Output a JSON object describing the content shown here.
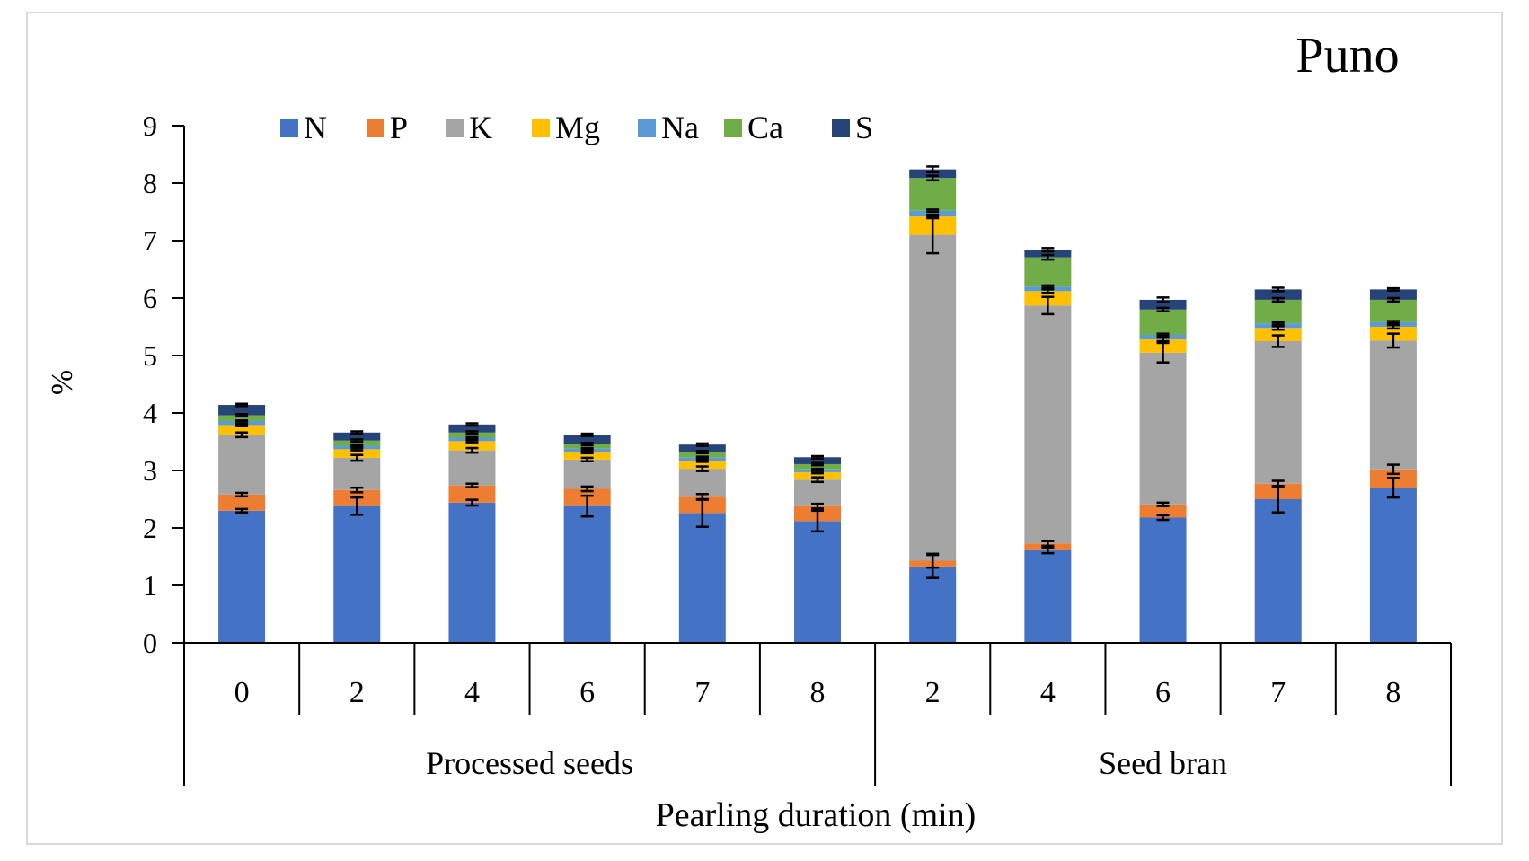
{
  "chart_data": {
    "type": "stacked-bar",
    "title": "Puno",
    "ylabel": "%",
    "xlabel": "Pearling duration (min)",
    "ylim": [
      0,
      9
    ],
    "yticks": [
      "0",
      "1",
      "2",
      "3",
      "4",
      "5",
      "6",
      "7",
      "8",
      "9"
    ],
    "grid": false,
    "legend_position": "top-left",
    "groups": [
      {
        "label": "Processed seeds",
        "categories": [
          "0",
          "2",
          "4",
          "6",
          "7",
          "8"
        ]
      },
      {
        "label": "Seed bran",
        "categories": [
          "2",
          "4",
          "6",
          "7",
          "8"
        ]
      }
    ],
    "series": [
      {
        "name": "N",
        "color": "#4472C4",
        "values": [
          2.3,
          2.38,
          2.44,
          2.38,
          2.26,
          2.12,
          1.33,
          1.61,
          2.18,
          2.5,
          2.7
        ],
        "errors": [
          0.03,
          0.15,
          0.05,
          0.18,
          0.24,
          0.18,
          0.2,
          0.05,
          0.04,
          0.23,
          0.17
        ]
      },
      {
        "name": "P",
        "color": "#ED7D31",
        "values": [
          0.28,
          0.28,
          0.3,
          0.3,
          0.28,
          0.26,
          0.1,
          0.12,
          0.23,
          0.27,
          0.32
        ],
        "errors": [
          0.03,
          0.04,
          0.03,
          0.04,
          0.05,
          0.04,
          0.12,
          0.04,
          0.03,
          0.05,
          0.08
        ]
      },
      {
        "name": "K",
        "color": "#A5A5A5",
        "values": [
          1.04,
          0.56,
          0.61,
          0.51,
          0.49,
          0.46,
          5.67,
          4.14,
          2.64,
          2.48,
          2.24
        ],
        "errors": [
          0.04,
          0.05,
          0.04,
          0.03,
          0.04,
          0.04,
          0.32,
          0.15,
          0.17,
          0.1,
          0.12
        ]
      },
      {
        "name": "Mg",
        "color": "#FFC000",
        "values": [
          0.17,
          0.15,
          0.16,
          0.13,
          0.14,
          0.13,
          0.32,
          0.25,
          0.23,
          0.23,
          0.24
        ],
        "errors": [
          0.02,
          0.02,
          0.02,
          0.02,
          0.02,
          0.02,
          0.03,
          0.03,
          0.03,
          0.03,
          0.03
        ]
      },
      {
        "name": "Na",
        "color": "#5B9BD5",
        "values": [
          0.07,
          0.06,
          0.06,
          0.06,
          0.06,
          0.05,
          0.1,
          0.08,
          0.08,
          0.08,
          0.08
        ],
        "errors": [
          0.01,
          0.01,
          0.01,
          0.01,
          0.01,
          0.01,
          0.02,
          0.02,
          0.02,
          0.02,
          0.02
        ]
      },
      {
        "name": "Ca",
        "color": "#70AD47",
        "values": [
          0.1,
          0.09,
          0.09,
          0.08,
          0.09,
          0.09,
          0.57,
          0.51,
          0.44,
          0.41,
          0.39
        ],
        "errors": [
          0.02,
          0.02,
          0.02,
          0.02,
          0.02,
          0.02,
          0.04,
          0.04,
          0.03,
          0.03,
          0.03
        ]
      },
      {
        "name": "S",
        "color": "#264478",
        "values": [
          0.18,
          0.14,
          0.14,
          0.16,
          0.13,
          0.12,
          0.15,
          0.13,
          0.17,
          0.18,
          0.18
        ],
        "errors": [
          0.02,
          0.02,
          0.02,
          0.02,
          0.02,
          0.02,
          0.05,
          0.03,
          0.04,
          0.03,
          0.02
        ]
      }
    ]
  }
}
